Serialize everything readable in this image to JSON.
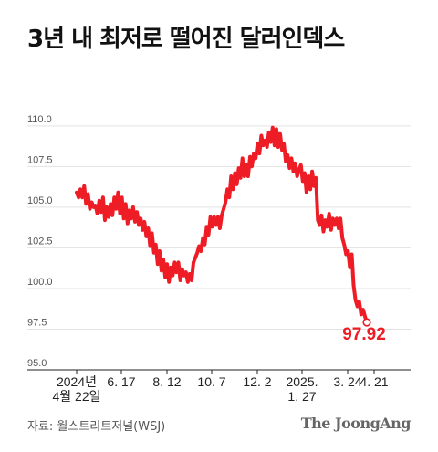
{
  "title": "3년 내 최저로 떨어진 달러인덱스",
  "source": "자료: 월스트리트저널(WSJ)",
  "brand": "The JoongAng",
  "colors": {
    "line": "#ee1c25",
    "axis": "#222222",
    "grid": "#e2e2e2",
    "tick_text": "#555555"
  },
  "chart_data": {
    "type": "line",
    "title": "3년 내 최저로 떨어진 달러인덱스",
    "ylim": [
      95.0,
      111.0
    ],
    "yticks": [
      "95.0",
      "97.5",
      "100.0",
      "102.5",
      "105.0",
      "107.5",
      "110.0"
    ],
    "ytick_values": [
      95.0,
      97.5,
      100.0,
      102.5,
      105.0,
      107.5,
      110.0
    ],
    "xtick_labels": [
      "2024년\n4월 22일",
      "6. 17",
      "8. 12",
      "10. 7",
      "12. 2",
      "2025.\n1. 27",
      "3. 24",
      "4. 21"
    ],
    "xtick_pos": [
      0,
      8,
      16,
      24,
      32,
      40,
      48,
      52
    ],
    "grid": "horizontal",
    "last_label": "97.92",
    "series": [
      {
        "values": [
          105.9,
          105.6,
          106.1,
          105.6,
          106.3,
          105.2,
          105.8,
          104.9,
          105.3,
          105.0,
          105.1,
          104.6,
          105.4,
          104.7,
          105.6,
          104.2,
          105.0,
          104.4,
          105.2,
          104.5,
          105.6,
          104.9,
          105.9,
          104.6,
          105.6,
          104.3,
          105.2,
          104.0,
          104.8,
          104.3,
          105.0,
          104.1,
          104.7,
          103.9,
          104.3,
          103.6,
          104.1,
          103.2,
          103.7,
          102.6,
          103.4,
          102.2,
          102.7,
          101.5,
          102.3,
          101.1,
          101.8,
          100.7,
          101.5,
          100.4,
          101.3,
          100.8,
          101.6,
          101.0,
          101.6,
          100.5,
          101.2,
          100.8,
          101.0,
          100.4,
          100.9,
          100.5,
          101.6,
          101.9,
          102.2,
          102.6,
          102.3,
          103.1,
          102.7,
          103.8,
          103.3,
          104.4,
          103.8,
          104.4,
          103.9,
          104.4,
          103.7,
          104.5,
          104.9,
          105.3,
          106.1,
          105.6,
          106.9,
          106.1,
          107.1,
          106.4,
          107.4,
          106.8,
          108.0,
          106.9,
          107.6,
          106.9,
          108.1,
          107.5,
          108.3,
          108.0,
          108.9,
          108.3,
          109.4,
          108.8,
          109.1,
          108.7,
          109.6,
          109.0,
          109.9,
          108.8,
          109.8,
          108.7,
          109.5,
          108.5,
          108.9,
          107.8,
          108.2,
          107.4,
          108.0,
          107.2,
          107.7,
          106.9,
          107.3,
          107.6,
          106.6,
          107.1,
          105.9,
          106.9,
          106.1,
          107.2,
          106.3,
          106.8,
          104.2,
          103.9,
          104.5,
          103.5,
          104.2,
          103.8,
          104.6,
          103.6,
          104.3,
          103.9,
          104.3,
          103.7,
          104.3,
          103.1,
          102.7,
          102.1,
          102.3,
          101.3,
          102.1,
          100.2,
          99.3,
          98.9,
          99.2,
          98.4,
          98.7,
          98.3,
          97.92
        ]
      }
    ]
  }
}
